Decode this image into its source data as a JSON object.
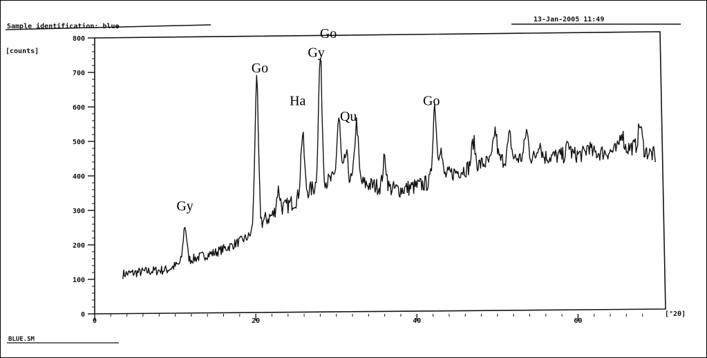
{
  "header": {
    "sample_label": "Sample identification: blue",
    "timestamp": "13-Jan-2005 11:49"
  },
  "footer": {
    "file_name": "BLUE.SM"
  },
  "chart_data": {
    "type": "line",
    "title": "Sample identification: blue",
    "ylabel": "[counts]",
    "xlabel": "[°2θ]",
    "xlim": [
      0,
      70
    ],
    "ylim": [
      0,
      800
    ],
    "x_ticks": [
      0,
      20,
      40,
      60
    ],
    "y_ticks": [
      0,
      100,
      200,
      300,
      400,
      500,
      600,
      700,
      800
    ],
    "grid": false,
    "baseline": [
      [
        3.5,
        115
      ],
      [
        6,
        122
      ],
      [
        9,
        128
      ],
      [
        11,
        150
      ],
      [
        13,
        165
      ],
      [
        15,
        178
      ],
      [
        17,
        198
      ],
      [
        19,
        222
      ],
      [
        20,
        245
      ],
      [
        21,
        270
      ],
      [
        23,
        300
      ],
      [
        25,
        330
      ],
      [
        26,
        350
      ],
      [
        28,
        375
      ],
      [
        30,
        395
      ],
      [
        32,
        385
      ],
      [
        34,
        375
      ],
      [
        36,
        365
      ],
      [
        38,
        360
      ],
      [
        40,
        370
      ],
      [
        42,
        385
      ],
      [
        44,
        405
      ],
      [
        46,
        420
      ],
      [
        48,
        435
      ],
      [
        50,
        445
      ],
      [
        53,
        452
      ],
      [
        56,
        455
      ],
      [
        60,
        462
      ],
      [
        64,
        470
      ],
      [
        67,
        485
      ],
      [
        69.5,
        460
      ]
    ],
    "peaks": [
      {
        "x": 11.2,
        "y": 255
      },
      {
        "x": 20.1,
        "y": 668
      },
      {
        "x": 22.8,
        "y": 360
      },
      {
        "x": 25.8,
        "y": 518
      },
      {
        "x": 28.0,
        "y": 742
      },
      {
        "x": 30.3,
        "y": 565
      },
      {
        "x": 31.2,
        "y": 462
      },
      {
        "x": 32.5,
        "y": 555
      },
      {
        "x": 36.0,
        "y": 450
      },
      {
        "x": 42.2,
        "y": 605
      },
      {
        "x": 42.9,
        "y": 482
      },
      {
        "x": 47.0,
        "y": 500
      },
      {
        "x": 49.7,
        "y": 532
      },
      {
        "x": 51.5,
        "y": 515
      },
      {
        "x": 53.6,
        "y": 530
      },
      {
        "x": 55.2,
        "y": 500
      },
      {
        "x": 58.8,
        "y": 492
      },
      {
        "x": 61.3,
        "y": 488
      },
      {
        "x": 65.4,
        "y": 530
      },
      {
        "x": 67.7,
        "y": 550
      }
    ],
    "annotations": [
      {
        "text": "Gy",
        "x": 11.2,
        "y": 300
      },
      {
        "text": "Go",
        "x": 20.5,
        "y": 700
      },
      {
        "text": "Ha",
        "x": 25.2,
        "y": 605
      },
      {
        "text": "Gy",
        "x": 27.5,
        "y": 745
      },
      {
        "text": "Go",
        "x": 29.0,
        "y": 800
      },
      {
        "text": "Qu",
        "x": 31.5,
        "y": 560
      },
      {
        "text": "Go",
        "x": 41.8,
        "y": 605
      }
    ]
  }
}
